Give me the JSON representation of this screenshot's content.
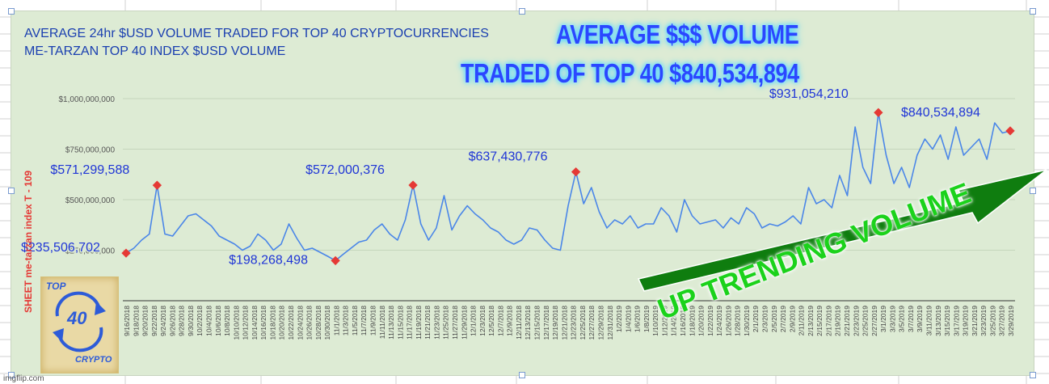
{
  "chart_data": {
    "type": "line",
    "title": "AVERAGE 24hr $USD VOLUME TRADED FOR TOP 40 CRYPTOCURRENCIES",
    "subtitle": "ME-TARZAN TOP 40 INDEX $USD VOLUME",
    "ylabel": "SHEET me-tarzan index   T - 109",
    "ylim": [
      0,
      1000000000
    ],
    "yticks": [
      "$1,000,000,000",
      "$750,000,000",
      "$500,000,000",
      "$250,000,000"
    ],
    "grid": true,
    "x_start": "9/16/2018",
    "x_end": "3/29/2019",
    "x_ticks": [
      "9/16/2018",
      "9/18/2018",
      "9/20/2018",
      "9/22/2018",
      "9/24/2018",
      "9/26/2018",
      "9/28/2018",
      "9/30/2018",
      "10/2/2018",
      "10/4/2018",
      "10/6/2018",
      "10/8/2018",
      "10/10/2018",
      "10/12/2018",
      "10/14/2018",
      "10/16/2018",
      "10/18/2018",
      "10/20/2018",
      "10/22/2018",
      "10/24/2018",
      "10/26/2018",
      "10/28/2018",
      "10/30/2018",
      "11/1/2018",
      "11/3/2018",
      "11/5/2018",
      "11/7/2018",
      "11/9/2018",
      "11/11/2018",
      "11/13/2018",
      "11/15/2018",
      "11/17/2018",
      "11/19/2018",
      "11/21/2018",
      "11/23/2018",
      "11/25/2018",
      "11/27/2018",
      "11/29/2018",
      "12/1/2018",
      "12/3/2018",
      "12/5/2018",
      "12/7/2018",
      "12/9/2018",
      "12/11/2018",
      "12/13/2018",
      "12/15/2018",
      "12/17/2018",
      "12/19/2018",
      "12/21/2018",
      "12/23/2018",
      "12/25/2018",
      "12/27/2018",
      "12/29/2018",
      "12/31/2018",
      "1/2/2019",
      "1/4/2019",
      "1/6/2019",
      "1/8/2019",
      "1/10/2019",
      "1/12/2019",
      "1/14/2019",
      "1/16/2019",
      "1/18/2019",
      "1/20/2019",
      "1/22/2019",
      "1/24/2019",
      "1/26/2019",
      "1/28/2019",
      "1/30/2019",
      "2/1/2019",
      "2/3/2019",
      "2/5/2019",
      "2/7/2019",
      "2/9/2019",
      "2/11/2019",
      "2/13/2019",
      "2/15/2019",
      "2/17/2019",
      "2/19/2019",
      "2/21/2019",
      "2/23/2019",
      "2/25/2019",
      "2/27/2019",
      "3/1/2019",
      "3/3/2019",
      "3/5/2019",
      "3/7/2019",
      "3/9/2019",
      "3/11/2019",
      "3/13/2019",
      "3/15/2019",
      "3/17/2019",
      "3/19/2019",
      "3/21/2019",
      "3/23/2019",
      "3/25/2019",
      "3/27/2019",
      "3/29/2019"
    ],
    "series": [
      {
        "color": "#4a86e8",
        "values": [
          235506702,
          260000000,
          300000000,
          330000000,
          571299588,
          330000000,
          320000000,
          370000000,
          420000000,
          430000000,
          400000000,
          370000000,
          320000000,
          300000000,
          280000000,
          250000000,
          270000000,
          330000000,
          300000000,
          250000000,
          280000000,
          380000000,
          310000000,
          250000000,
          260000000,
          240000000,
          220000000,
          198268498,
          230000000,
          260000000,
          290000000,
          300000000,
          350000000,
          380000000,
          330000000,
          300000000,
          400000000,
          572000376,
          380000000,
          300000000,
          360000000,
          520000000,
          350000000,
          420000000,
          470000000,
          430000000,
          400000000,
          360000000,
          340000000,
          300000000,
          280000000,
          300000000,
          360000000,
          350000000,
          300000000,
          260000000,
          250000000,
          470000000,
          637430776,
          480000000,
          560000000,
          440000000,
          360000000,
          400000000,
          380000000,
          420000000,
          360000000,
          380000000,
          380000000,
          460000000,
          420000000,
          340000000,
          500000000,
          420000000,
          380000000,
          390000000,
          400000000,
          360000000,
          410000000,
          380000000,
          460000000,
          430000000,
          360000000,
          380000000,
          370000000,
          390000000,
          420000000,
          380000000,
          560000000,
          480000000,
          500000000,
          460000000,
          620000000,
          520000000,
          860000000,
          660000000,
          580000000,
          931054210,
          720000000,
          580000000,
          660000000,
          560000000,
          720000000,
          800000000,
          750000000,
          820000000,
          700000000,
          860000000,
          720000000,
          760000000,
          800000000,
          700000000,
          880000000,
          830000000,
          840534894
        ]
      }
    ],
    "annotations": [
      {
        "label": "$235,506,702",
        "index": 0
      },
      {
        "label": "$571,299,588",
        "index": 4
      },
      {
        "label": "$198,268,498",
        "index": 27
      },
      {
        "label": "$572,000,376",
        "index": 37
      },
      {
        "label": "$637,430,776",
        "index": 58
      },
      {
        "label": "$931,054,210",
        "index": 97
      },
      {
        "label": "$840,534,894",
        "index": 114
      }
    ]
  },
  "overlay": {
    "headline_line1": "AVERAGE $$$ VOLUME",
    "headline_line2": "TRADED OF TOP 40  $840,534,894",
    "trend_text": "UP TRENDING  VOLUME",
    "trend_arrow_color": "#0f7d0f",
    "trend_text_color": "#1bd21b"
  },
  "logo": {
    "top": "TOP",
    "number": "40",
    "bottom": "CRYPTO"
  },
  "watermark": "imgflip.com"
}
